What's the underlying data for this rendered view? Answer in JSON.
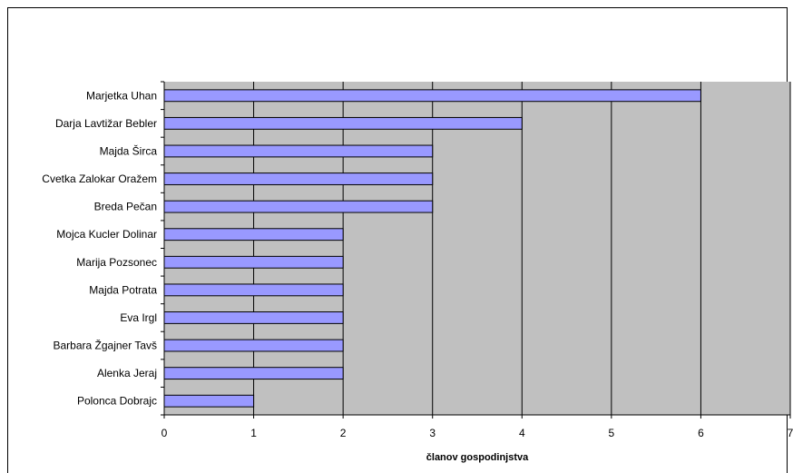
{
  "chart_data": {
    "type": "bar",
    "orientation": "horizontal",
    "title": "",
    "xlabel": "članov gospodinjstva",
    "ylabel": "",
    "xlim": [
      0,
      7
    ],
    "x_ticks": [
      "0",
      "1",
      "2",
      "3",
      "4",
      "5",
      "6",
      "7"
    ],
    "grid": "vertical",
    "legend": "none",
    "categories": [
      "Marjetka Uhan",
      "Darja Lavtižar Bebler",
      "Majda Širca",
      "Cvetka Zalokar Oražem",
      "Breda Pečan",
      "Mojca Kucler Dolinar",
      "Marija Pozsonec",
      "Majda Potrata",
      "Eva Irgl",
      "Barbara Žgajner Tavš",
      "Alenka Jeraj",
      "Polonca Dobrajc"
    ],
    "values": [
      6,
      4,
      3,
      3,
      3,
      2,
      2,
      2,
      2,
      2,
      2,
      1
    ],
    "colors": {
      "bar_fill": "#9999ff",
      "bar_stroke": "#000000",
      "plot_background": "#c0c0c0",
      "grid": "#000000"
    }
  }
}
